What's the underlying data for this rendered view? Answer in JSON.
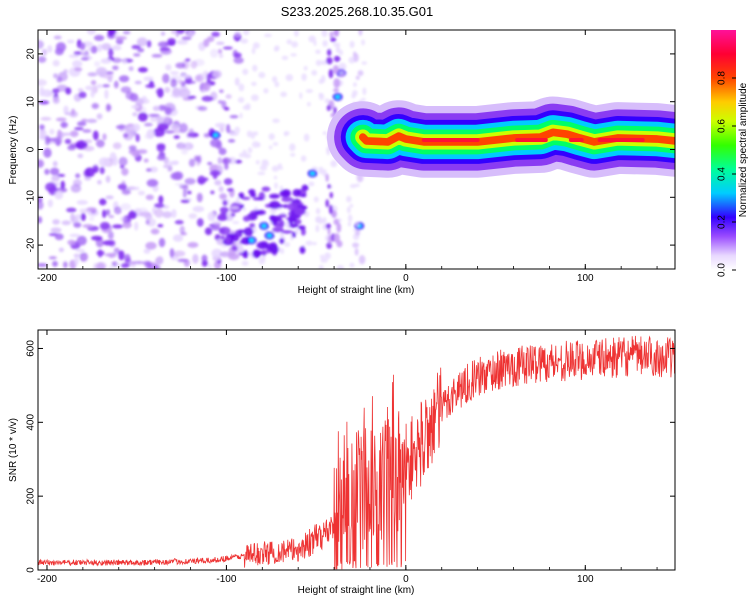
{
  "title": "S233.2025.268.10.35.G01",
  "chart_data": [
    {
      "type": "heatmap",
      "xlabel": "Height of straight line (km)",
      "ylabel": "Frequency (Hz)",
      "xlim": [
        -205,
        150
      ],
      "ylim": [
        -25,
        25
      ],
      "xticks": [
        -200,
        -100,
        0,
        100
      ],
      "xtick_labels": [
        "-200",
        "-100",
        "0",
        "100"
      ],
      "yticks": [
        -20,
        -10,
        0,
        10,
        20
      ],
      "ytick_labels": [
        "-20",
        "-10",
        "0",
        "10",
        "20"
      ],
      "colorbar": {
        "label": "Normalized spectral amplitude",
        "range": [
          0,
          1
        ],
        "ticks": [
          0,
          0.2,
          0.4,
          0.6,
          0.8
        ],
        "tick_labels": [
          "0.0",
          "0.2",
          "0.4",
          "0.6",
          "0.8"
        ]
      },
      "ridge": [
        {
          "x": -24,
          "y": 2.6
        },
        {
          "x": -22,
          "y": 1.8
        },
        {
          "x": -10,
          "y": 1.6
        },
        {
          "x": -4,
          "y": 2.8
        },
        {
          "x": 0,
          "y": 2.2
        },
        {
          "x": 10,
          "y": 1.6
        },
        {
          "x": 25,
          "y": 1.6
        },
        {
          "x": 40,
          "y": 1.6
        },
        {
          "x": 60,
          "y": 2.4
        },
        {
          "x": 75,
          "y": 2.6
        },
        {
          "x": 82,
          "y": 3.6
        },
        {
          "x": 90,
          "y": 3.2
        },
        {
          "x": 97,
          "y": 2.4
        },
        {
          "x": 105,
          "y": 1.6
        },
        {
          "x": 118,
          "y": 2.4
        },
        {
          "x": 140,
          "y": 2.2
        },
        {
          "x": 150,
          "y": 1.8
        }
      ]
    },
    {
      "type": "line",
      "color": "#ee3333",
      "xlabel": "Height of straight line (km)",
      "ylabel": "SNR (10 * v/v)",
      "xlim": [
        -205,
        150
      ],
      "ylim": [
        0,
        650
      ],
      "xticks": [
        -200,
        -100,
        0,
        100
      ],
      "xtick_labels": [
        "-200",
        "-100",
        "0",
        "100"
      ],
      "yticks": [
        0,
        200,
        400,
        600
      ],
      "ytick_labels": [
        "0",
        "200",
        "400",
        "600"
      ],
      "trend": [
        {
          "x": -205,
          "y": 20
        },
        {
          "x": -150,
          "y": 20
        },
        {
          "x": -110,
          "y": 25
        },
        {
          "x": -80,
          "y": 45
        },
        {
          "x": -60,
          "y": 55
        },
        {
          "x": -45,
          "y": 100
        },
        {
          "x": -35,
          "y": 150
        },
        {
          "x": -25,
          "y": 210
        },
        {
          "x": -15,
          "y": 240
        },
        {
          "x": -5,
          "y": 270
        },
        {
          "x": 5,
          "y": 310
        },
        {
          "x": 15,
          "y": 400
        },
        {
          "x": 25,
          "y": 470
        },
        {
          "x": 35,
          "y": 510
        },
        {
          "x": 50,
          "y": 540
        },
        {
          "x": 70,
          "y": 560
        },
        {
          "x": 100,
          "y": 570
        },
        {
          "x": 130,
          "y": 580
        },
        {
          "x": 150,
          "y": 575
        }
      ]
    }
  ]
}
